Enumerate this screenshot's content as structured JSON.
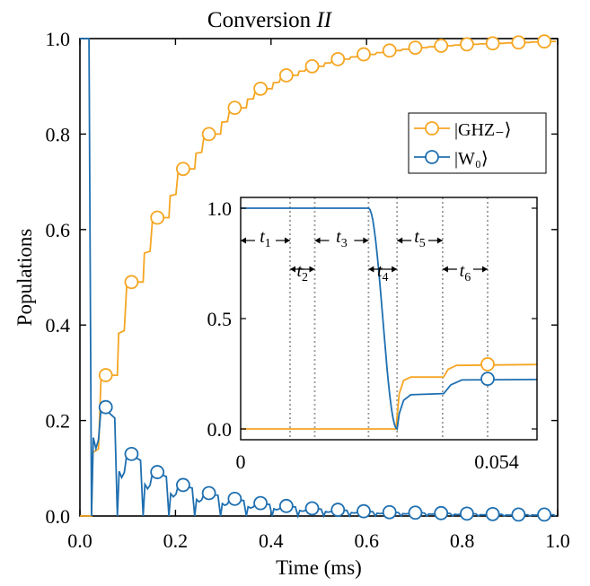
{
  "chart_data": {
    "type": "line",
    "title": "Conversion",
    "title_symbol": "II",
    "xlabel": "Time (ms)",
    "ylabel": "Populations",
    "xlim": [
      0,
      1
    ],
    "ylim": [
      0,
      1
    ],
    "xticks": [
      "0.0",
      "0.2",
      "0.4",
      "0.6",
      "0.8",
      "1.0"
    ],
    "yticks": [
      "0.0",
      "0.2",
      "0.4",
      "0.6",
      "0.8",
      "1.0"
    ],
    "legend_position": "upper-right",
    "colors": {
      "ghz": "#f5a623",
      "w0": "#1f6fb0"
    },
    "series": [
      {
        "key": "ghz",
        "name": "|GHZ₋⟩",
        "marker_x": [
          0.054,
          0.108,
          0.162,
          0.216,
          0.27,
          0.324,
          0.378,
          0.432,
          0.486,
          0.54,
          0.594,
          0.648,
          0.702,
          0.756,
          0.81,
          0.864,
          0.918,
          0.972
        ],
        "marker_y": [
          0.295,
          0.49,
          0.625,
          0.727,
          0.8,
          0.855,
          0.895,
          0.923,
          0.942,
          0.957,
          0.967,
          0.975,
          0.981,
          0.985,
          0.988,
          0.99,
          0.992,
          0.994
        ]
      },
      {
        "key": "w0",
        "name": "|W₀⟩",
        "marker_x": [
          0.054,
          0.108,
          0.162,
          0.216,
          0.27,
          0.324,
          0.378,
          0.432,
          0.486,
          0.54,
          0.594,
          0.648,
          0.702,
          0.756,
          0.81,
          0.864,
          0.918,
          0.972
        ],
        "marker_y": [
          0.228,
          0.13,
          0.092,
          0.065,
          0.048,
          0.036,
          0.027,
          0.021,
          0.016,
          0.013,
          0.01,
          0.008,
          0.007,
          0.006,
          0.005,
          0.004,
          0.003,
          0.003
        ]
      }
    ],
    "inset": {
      "xlim": [
        0,
        0.054
      ],
      "ylim": [
        0,
        1
      ],
      "xticks": [
        "0",
        "0.054"
      ],
      "yticks": [
        "0.0",
        "0.5",
        "1.0"
      ],
      "segment_boundaries": [
        0.009,
        0.0135,
        0.0233,
        0.0285,
        0.0368,
        0.045
      ],
      "segment_labels": [
        "t1",
        "t2",
        "t3",
        "t4",
        "t5",
        "t6"
      ],
      "ghz_marker": {
        "x": 0.045,
        "y": 0.293
      },
      "w0_marker": {
        "x": 0.045,
        "y": 0.227
      }
    }
  }
}
